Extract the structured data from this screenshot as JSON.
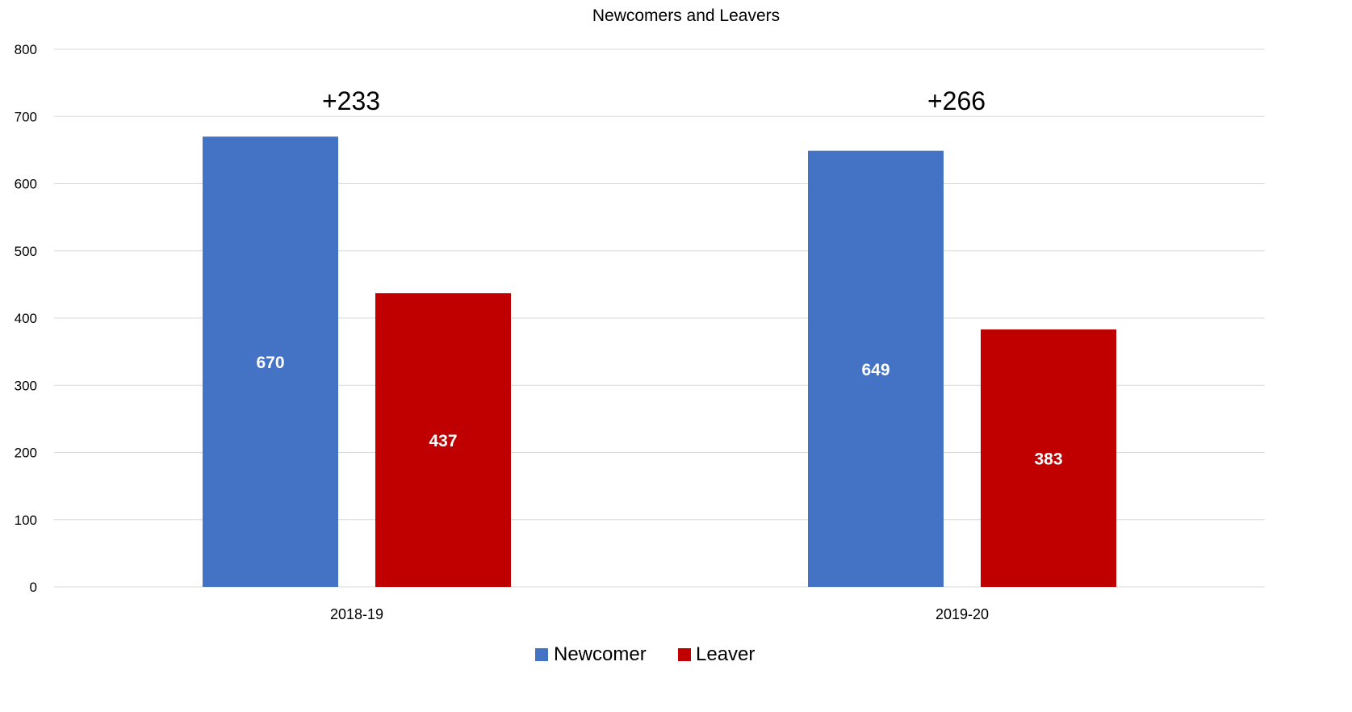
{
  "chart_data": {
    "type": "bar",
    "title": "Newcomers and Leavers",
    "xlabel": "",
    "ylabel": "",
    "ylim": [
      0,
      800
    ],
    "yticks": [
      0,
      100,
      200,
      300,
      400,
      500,
      600,
      700,
      800
    ],
    "grid": true,
    "legend_position": "bottom",
    "categories": [
      "2018-19",
      "2019-20"
    ],
    "series": [
      {
        "name": "Newcomer",
        "color": "#4472C4",
        "values": [
          670,
          649
        ]
      },
      {
        "name": "Leaver",
        "color": "#C00000",
        "values": [
          437,
          383
        ]
      }
    ],
    "data_labels": [
      [
        "670",
        "437"
      ],
      [
        "649",
        "383"
      ]
    ],
    "annotations": [
      "+233",
      "+266"
    ]
  }
}
